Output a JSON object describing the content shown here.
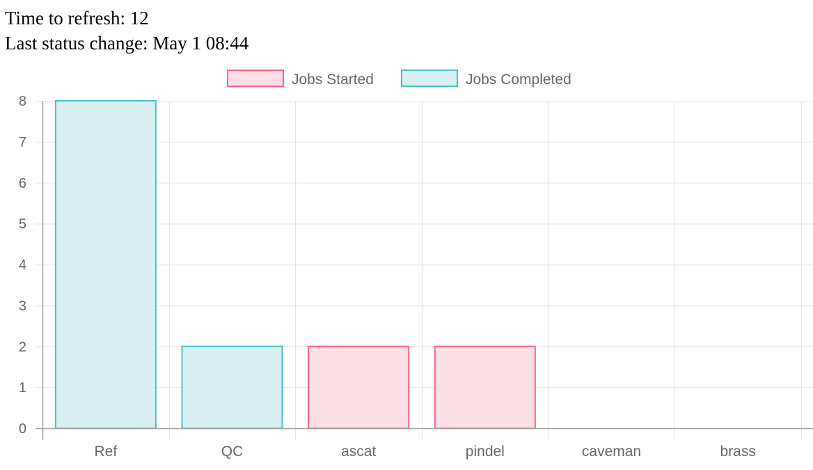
{
  "status": {
    "refresh_label": "Time to refresh:",
    "refresh_value": "12",
    "change_label": "Last status change:",
    "change_value": "May 1 08:44"
  },
  "chart_data": {
    "type": "bar",
    "categories": [
      "Ref",
      "QC",
      "ascat",
      "pindel",
      "caveman",
      "brass"
    ],
    "series": [
      {
        "name": "Jobs Started",
        "values": [
          0,
          0,
          2,
          2,
          0,
          0
        ],
        "color": "#ff6384",
        "fill": "#fde0e6"
      },
      {
        "name": "Jobs Completed",
        "values": [
          8,
          2,
          0,
          0,
          0,
          0
        ],
        "color": "#4bc0c0",
        "fill": "#d8f0f1"
      }
    ],
    "stacked": true,
    "ylim": [
      0,
      8
    ],
    "yticks": [
      0,
      1,
      2,
      3,
      4,
      5,
      6,
      7,
      8
    ],
    "grid": true,
    "legend_position": "top-center",
    "gridColor": "#e5e5e5",
    "axisColor": "#a0a0a0",
    "textColor": "#666666"
  }
}
